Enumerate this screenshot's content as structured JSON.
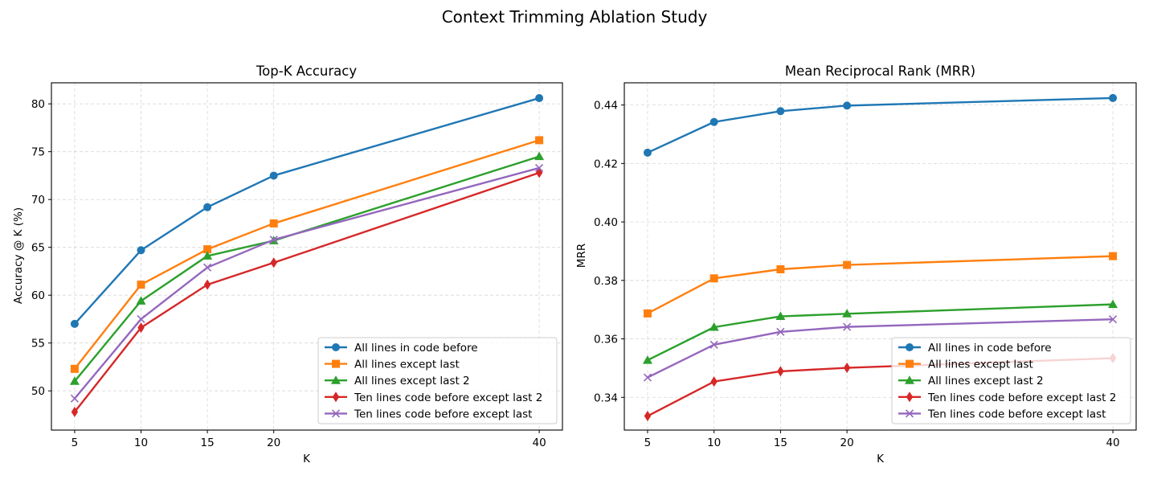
{
  "chart_data": {
    "suptitle": "Context Trimming Ablation Study",
    "legend_position": "lower-right",
    "series_styles": [
      {
        "name": "All lines in code before",
        "color": "#1f77b4",
        "marker": "circle"
      },
      {
        "name": "All lines except last",
        "color": "#ff7f0e",
        "marker": "square"
      },
      {
        "name": "All lines except last 2",
        "color": "#2ca02c",
        "marker": "triangle"
      },
      {
        "name": "Ten lines code before except last 2",
        "color": "#d62728",
        "marker": "diamond"
      },
      {
        "name": "Ten lines code before except last",
        "color": "#9467bd",
        "marker": "x"
      }
    ],
    "charts": [
      {
        "type": "line",
        "title": "Top-K Accuracy",
        "xlabel": "K",
        "ylabel": "Accuracy @ K (%)",
        "x": [
          5,
          10,
          15,
          20,
          40
        ],
        "xlim": [
          3.25,
          41.75
        ],
        "ylim": [
          45.9,
          82.2
        ],
        "yticks": [
          50,
          55,
          60,
          65,
          70,
          75,
          80
        ],
        "ytick_labels": [
          "50",
          "55",
          "60",
          "65",
          "70",
          "75",
          "80"
        ],
        "grid": true,
        "series": [
          {
            "name": "All lines in code before",
            "values": [
              57.0,
              64.7,
              69.2,
              72.5,
              80.6
            ]
          },
          {
            "name": "All lines except last",
            "values": [
              52.3,
              61.1,
              64.8,
              67.5,
              76.2
            ]
          },
          {
            "name": "All lines except last 2",
            "values": [
              51.0,
              59.4,
              64.1,
              65.7,
              74.5
            ]
          },
          {
            "name": "Ten lines code before except last 2",
            "values": [
              47.8,
              56.6,
              61.1,
              63.4,
              72.8
            ]
          },
          {
            "name": "Ten lines code before except last",
            "values": [
              49.2,
              57.5,
              62.9,
              65.8,
              73.3
            ]
          }
        ]
      },
      {
        "type": "line",
        "title": "Mean Reciprocal Rank (MRR)",
        "xlabel": "K",
        "ylabel": "MRR",
        "x": [
          5,
          10,
          15,
          20,
          40
        ],
        "xlim": [
          3.25,
          41.75
        ],
        "ylim": [
          0.3288,
          0.4476
        ],
        "yticks": [
          0.34,
          0.36,
          0.38,
          0.4,
          0.42,
          0.44
        ],
        "ytick_labels": [
          "0.34",
          "0.36",
          "0.38",
          "0.40",
          "0.42",
          "0.44"
        ],
        "grid": true,
        "series": [
          {
            "name": "All lines in code before",
            "values": [
              0.4237,
              0.4342,
              0.4379,
              0.4398,
              0.4424
            ]
          },
          {
            "name": "All lines except last",
            "values": [
              0.3687,
              0.3807,
              0.3838,
              0.3853,
              0.3883
            ]
          },
          {
            "name": "All lines except last 2",
            "values": [
              0.3527,
              0.364,
              0.3677,
              0.3686,
              0.3718
            ]
          },
          {
            "name": "Ten lines code before except last 2",
            "values": [
              0.3336,
              0.3454,
              0.3489,
              0.3501,
              0.3534
            ]
          },
          {
            "name": "Ten lines code before except last",
            "values": [
              0.3468,
              0.358,
              0.3624,
              0.3641,
              0.3667
            ]
          }
        ]
      }
    ]
  }
}
